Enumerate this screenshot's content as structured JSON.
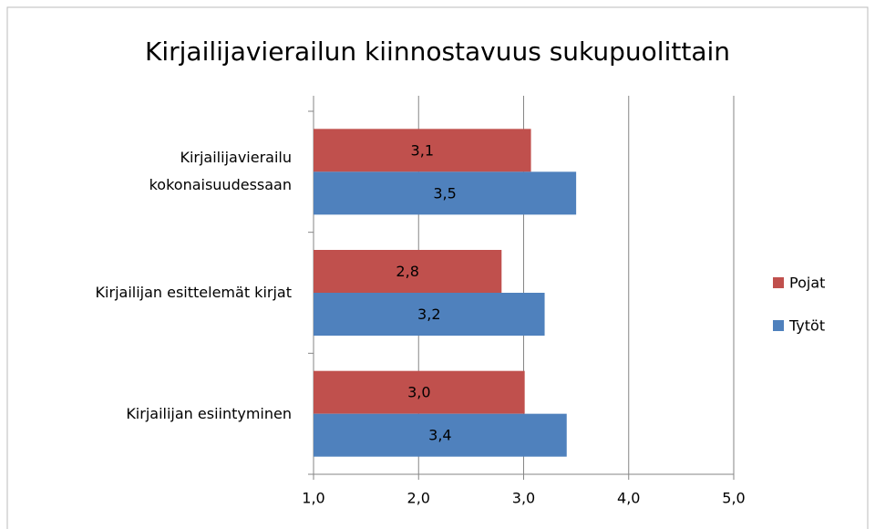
{
  "chart_data": {
    "type": "barh",
    "title": "Kirjailijavierailun kiinnostavuus sukupuolittain",
    "categories": [
      "Kirjailijavierailu\nkokonaisuudessaan",
      "Kirjailijan esittelemät kirjat",
      "Kirjailijan esiintyminen"
    ],
    "series": [
      {
        "name": "Pojat",
        "color": "#c0504d",
        "values": [
          3.07,
          2.79,
          3.01
        ],
        "value_labels": [
          "3,1",
          "2,8",
          "3,0"
        ]
      },
      {
        "name": "Tytöt",
        "color": "#4f81bd",
        "values": [
          3.5,
          3.2,
          3.41
        ],
        "value_labels": [
          "3,5",
          "3,2",
          "3,4"
        ]
      }
    ],
    "xlim": [
      1,
      5
    ],
    "xticks": [
      {
        "value": 1,
        "label": "1,0"
      },
      {
        "value": 2,
        "label": "2,0"
      },
      {
        "value": 3,
        "label": "3,0"
      },
      {
        "value": 4,
        "label": "4,0"
      },
      {
        "value": 5,
        "label": "5,0"
      }
    ],
    "grid": true,
    "legend": "right"
  }
}
